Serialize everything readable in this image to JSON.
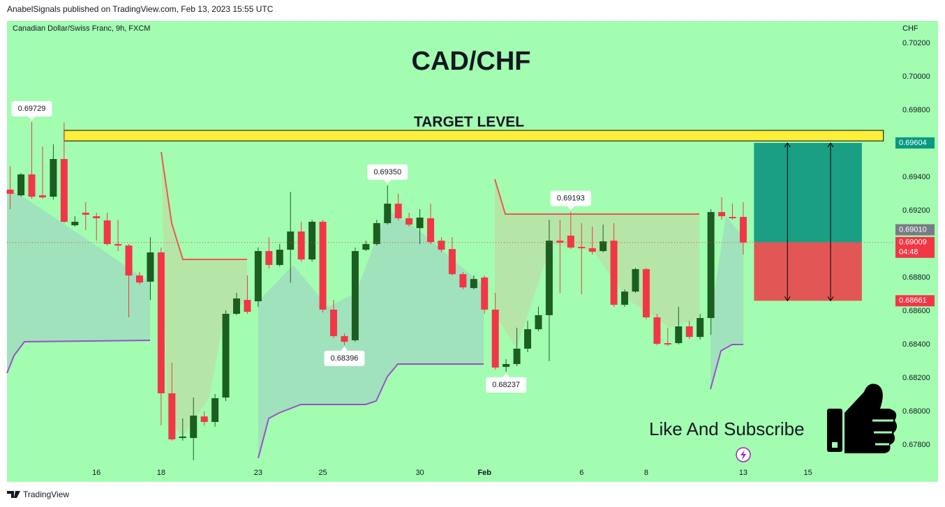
{
  "chart_data": {
    "type": "candlestick",
    "header": "AnabelSignals published on TradingView.com, Feb 13, 2023 15:55 UTC",
    "subtitle": "Canadian Dollar/Swiss Franc, 9h, FXCM",
    "currency": "CHF",
    "title": "CAD/CHF",
    "footer": "TradingView",
    "promo": "Like And Subscribe",
    "up_color": "#1b5e20",
    "down_color": "#f23645",
    "open": [
      0.69325,
      0.69291,
      0.69416,
      0.69291,
      0.69283,
      0.69508,
      0.69112,
      0.69187,
      0.69166,
      0.69141,
      0.69,
      0.68991,
      0.68812,
      0.68775,
      0.6895,
      0.68108,
      0.67841,
      0.67841,
      0.6797,
      0.67937,
      0.68083,
      0.68583,
      0.68666,
      0.68658,
      0.68958,
      0.68875,
      0.68966,
      0.69075,
      0.68908,
      0.69133,
      0.68608,
      0.6845,
      0.68425,
      0.68966,
      0.69,
      0.69125,
      0.69241,
      0.69154,
      0.69095,
      0.69154,
      0.6902,
      0.6897,
      0.6882,
      0.68737,
      0.688,
      0.68608,
      0.68266,
      0.68283,
      0.68375,
      0.68491,
      0.68575,
      0.6902,
      0.6905,
      0.68983,
      0.68975,
      0.68958,
      0.6902,
      0.68637,
      0.68716,
      0.6885,
      0.68562,
      0.68408,
      0.68408,
      0.68508,
      0.68445,
      0.68558,
      0.69191,
      0.69162,
      0.69162
    ],
    "high": [
      0.69466,
      0.69425,
      0.69729,
      0.69583,
      0.69596,
      0.69725,
      0.69166,
      0.6925,
      0.69187,
      0.69187,
      0.69145,
      0.69,
      0.68833,
      0.69041,
      0.68979,
      0.68291,
      0.67958,
      0.68083,
      0.68,
      0.68104,
      0.68604,
      0.68708,
      0.68812,
      0.68979,
      0.69041,
      0.69,
      0.69312,
      0.69133,
      0.69145,
      0.69145,
      0.68666,
      0.68466,
      0.68979,
      0.6902,
      0.69145,
      0.6935,
      0.693,
      0.69187,
      0.69208,
      0.69241,
      0.69041,
      0.69041,
      0.68833,
      0.68812,
      0.68812,
      0.68708,
      0.68312,
      0.685,
      0.68541,
      0.68625,
      0.69145,
      0.69145,
      0.69193,
      0.69125,
      0.69104,
      0.69116,
      0.69125,
      0.68729,
      0.68858,
      0.68858,
      0.68583,
      0.685,
      0.68625,
      0.68541,
      0.68583,
      0.69208,
      0.69279,
      0.69241,
      0.6925
    ],
    "low": [
      0.69208,
      0.69283,
      0.6927,
      0.6927,
      0.69266,
      0.69125,
      0.69104,
      0.69083,
      0.6902,
      0.68991,
      0.68958,
      0.68562,
      0.68758,
      0.68666,
      0.67916,
      0.67825,
      0.67825,
      0.67708,
      0.67916,
      0.67908,
      0.68062,
      0.68575,
      0.68583,
      0.68625,
      0.68854,
      0.68866,
      0.6877,
      0.68895,
      0.68895,
      0.68591,
      0.68437,
      0.68396,
      0.68416,
      0.68958,
      0.68991,
      0.69116,
      0.69141,
      0.69104,
      0.69,
      0.69,
      0.6895,
      0.68812,
      0.68729,
      0.68729,
      0.68583,
      0.6825,
      0.68237,
      0.6827,
      0.68354,
      0.68479,
      0.683,
      0.68708,
      0.6897,
      0.687,
      0.68937,
      0.6895,
      0.68625,
      0.68625,
      0.68708,
      0.6855,
      0.68395,
      0.68391,
      0.684,
      0.68433,
      0.68429,
      0.68458,
      0.69145,
      0.69145,
      0.68937
    ],
    "close": [
      0.693,
      0.69416,
      0.69283,
      0.69279,
      0.69508,
      0.69133,
      0.69133,
      0.69175,
      0.69154,
      0.69,
      0.68991,
      0.68812,
      0.6877,
      0.6895,
      0.68108,
      0.67833,
      0.6785,
      0.67975,
      0.67937,
      0.68079,
      0.68583,
      0.68675,
      0.68595,
      0.68958,
      0.68875,
      0.68966,
      0.69075,
      0.68908,
      0.69133,
      0.68608,
      0.6845,
      0.68416,
      0.68958,
      0.69,
      0.69125,
      0.69241,
      0.69154,
      0.69116,
      0.69158,
      0.69012,
      0.68966,
      0.6882,
      0.68741,
      0.68791,
      0.68608,
      0.68262,
      0.68283,
      0.68375,
      0.68491,
      0.68575,
      0.6902,
      0.69008,
      0.68979,
      0.68975,
      0.68954,
      0.69016,
      0.68637,
      0.68716,
      0.6885,
      0.68562,
      0.68404,
      0.684,
      0.68508,
      0.68445,
      0.68558,
      0.69191,
      0.69166,
      0.69154,
      0.69009
    ],
    "xlim": [
      -0.3,
      81.6
    ],
    "xticks": [
      {
        "value": 8,
        "label": "16"
      },
      {
        "value": 14,
        "label": "18"
      },
      {
        "value": 23,
        "label": "23"
      },
      {
        "value": 29,
        "label": "25"
      },
      {
        "value": 38,
        "label": "30"
      },
      {
        "value": 44,
        "label": "Feb"
      },
      {
        "value": 53,
        "label": "6"
      },
      {
        "value": 59,
        "label": "8"
      },
      {
        "value": 68,
        "label": "13"
      },
      {
        "value": 74,
        "label": "15"
      }
    ],
    "ylim": [
      0.67583,
      0.70333
    ],
    "yticks": [
      {
        "value": 0.702,
        "label": "0.70200"
      },
      {
        "value": 0.7,
        "label": "0.70000"
      },
      {
        "value": 0.698,
        "label": "0.69800"
      },
      {
        "value": 0.694,
        "label": "0.69400"
      },
      {
        "value": 0.692,
        "label": "0.69200"
      },
      {
        "value": 0.688,
        "label": "0.68800"
      },
      {
        "value": 0.686,
        "label": "0.68600"
      },
      {
        "value": 0.684,
        "label": "0.68400"
      },
      {
        "value": 0.682,
        "label": "0.68200"
      },
      {
        "value": 0.68,
        "label": "0.68000"
      },
      {
        "value": 0.678,
        "label": "0.67800"
      }
    ],
    "callouts": [
      {
        "candle": 2,
        "side": "high",
        "label": "0.69729"
      },
      {
        "candle": 35,
        "side": "high",
        "label": "0.69350"
      },
      {
        "candle": 31,
        "side": "low",
        "label": "0.68396"
      },
      {
        "candle": 46,
        "side": "low",
        "label": "0.68237"
      },
      {
        "candle": 52,
        "side": "high",
        "label": "0.69193"
      }
    ],
    "target_level": {
      "label": "TARGET LEVEL",
      "from": 0.69616,
      "to": 0.69679,
      "start": 5,
      "end": 81,
      "color": "#ffef3a"
    },
    "position": {
      "start": 69,
      "end": 79,
      "target": 0.69604,
      "entry": 0.6901,
      "stop": 0.68661,
      "profit_color": "#1a9e84",
      "loss_color": "#e35656"
    },
    "price_tags": [
      {
        "value": 0.69604,
        "label": "0.69604",
        "color": "#089981"
      },
      {
        "value": 0.6901,
        "label": "0.69010",
        "color": "#787b86"
      },
      {
        "value": 0.69009,
        "label": "0.69009",
        "sublabel": "04:48",
        "color": "#f23645"
      },
      {
        "value": 0.68661,
        "label": "0.68661",
        "color": "#f23645"
      }
    ]
  }
}
